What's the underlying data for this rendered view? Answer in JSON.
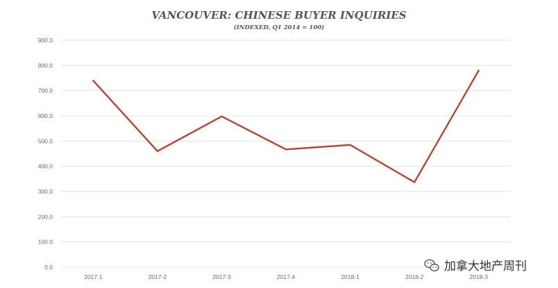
{
  "chart_data": {
    "type": "line",
    "title": "VANCOUVER: CHINESE BUYER INQUIRIES",
    "subtitle": "(INDEXED, Q1 2014 = 100)",
    "categories": [
      "2017-1",
      "2017-2",
      "2017-3",
      "2017-4",
      "2018-1",
      "2018-2",
      "2018-3"
    ],
    "series": [
      {
        "values": [
          740,
          460,
          598,
          467,
          485,
          337,
          780
        ],
        "color": "#b84430"
      }
    ],
    "ylim": [
      0,
      900
    ],
    "yticks": [
      "0.0",
      "100.0",
      "200.0",
      "300.0",
      "400.0",
      "500.0",
      "600.0",
      "700.0",
      "800.0",
      "900.0"
    ],
    "grid": true,
    "legend": "none",
    "xlabel": "",
    "ylabel": ""
  },
  "watermark": {
    "text": "加拿大地产周刊",
    "icon": "wechat-icon"
  }
}
